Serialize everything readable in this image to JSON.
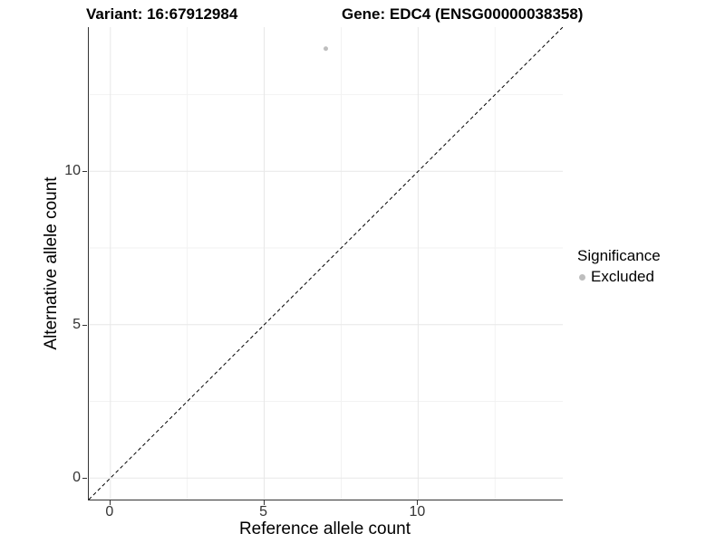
{
  "figure": {
    "title_variant": "Variant: 16:67912984",
    "title_gene": "Gene: EDC4 (ENSG00000038358)"
  },
  "chart_data": {
    "type": "scatter",
    "xlabel": "Reference allele count",
    "ylabel": "Alternative allele count",
    "xlim": [
      -0.7,
      14.7
    ],
    "ylim": [
      -0.7,
      14.7
    ],
    "x_major_ticks": [
      0,
      5,
      10
    ],
    "y_major_ticks": [
      0,
      5,
      10
    ],
    "x_minor_gridlines": [
      2.5,
      7.5,
      12.5
    ],
    "y_minor_gridlines": [
      2.5,
      7.5,
      12.5
    ],
    "grid": "major+minor",
    "identity_line": {
      "slope": 1,
      "intercept": 0,
      "linetype": "dashed",
      "color": "#000000"
    },
    "series": [
      {
        "name": "Excluded",
        "color": "#bebebe",
        "points": [
          {
            "x": 7,
            "y": 14
          }
        ]
      }
    ],
    "legend": {
      "position": "right",
      "title": "Significance",
      "items": [
        {
          "label": "Excluded",
          "color": "#bebebe",
          "marker": "circle"
        }
      ]
    },
    "colors": {
      "background": "#ffffff",
      "axis_line": "#333333",
      "grid_major": "#e7e7e7",
      "grid_minor": "#f2f2f2",
      "tick_label": "#333333",
      "title_text": "#000000",
      "point": "#bebebe"
    }
  }
}
